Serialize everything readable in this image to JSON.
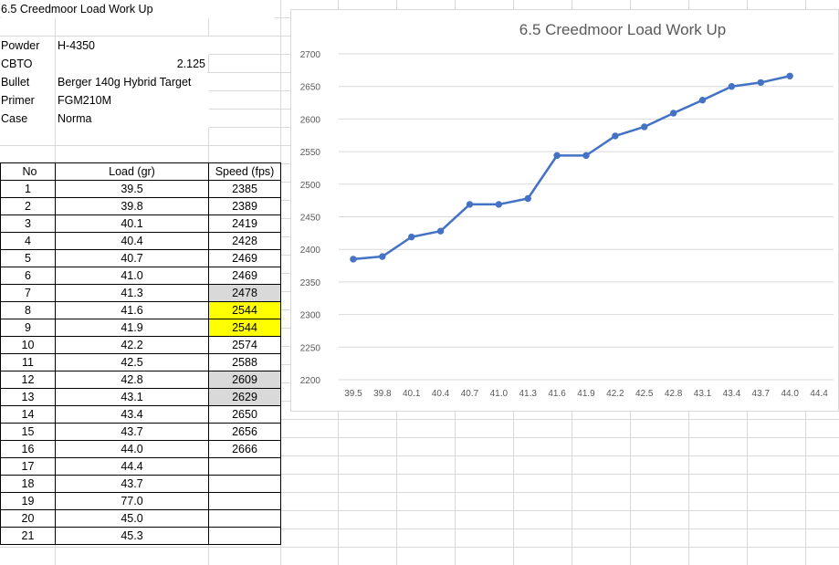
{
  "sheet": {
    "title": "6.5 Creedmoor Load Work Up",
    "specs": [
      {
        "label": "Powder",
        "value": "H-4350",
        "numeric": false
      },
      {
        "label": "CBTO",
        "value": "2.125",
        "numeric": true
      },
      {
        "label": "Bullet",
        "value": "Berger 140g Hybrid Target",
        "numeric": false
      },
      {
        "label": "Primer",
        "value": "FGM210M",
        "numeric": false
      },
      {
        "label": "Case",
        "value": "Norma",
        "numeric": false
      }
    ],
    "table": {
      "headers": [
        "No",
        "Load (gr)",
        "Speed (fps)"
      ],
      "rows": [
        {
          "no": "1",
          "load": "39.5",
          "speed": "2385",
          "fill": ""
        },
        {
          "no": "2",
          "load": "39.8",
          "speed": "2389",
          "fill": ""
        },
        {
          "no": "3",
          "load": "40.1",
          "speed": "2419",
          "fill": ""
        },
        {
          "no": "4",
          "load": "40.4",
          "speed": "2428",
          "fill": ""
        },
        {
          "no": "5",
          "load": "40.7",
          "speed": "2469",
          "fill": ""
        },
        {
          "no": "6",
          "load": "41.0",
          "speed": "2469",
          "fill": ""
        },
        {
          "no": "7",
          "load": "41.3",
          "speed": "2478",
          "fill": "#d9d9d9"
        },
        {
          "no": "8",
          "load": "41.6",
          "speed": "2544",
          "fill": "#ffff00"
        },
        {
          "no": "9",
          "load": "41.9",
          "speed": "2544",
          "fill": "#ffff00"
        },
        {
          "no": "10",
          "load": "42.2",
          "speed": "2574",
          "fill": ""
        },
        {
          "no": "11",
          "load": "42.5",
          "speed": "2588",
          "fill": ""
        },
        {
          "no": "12",
          "load": "42.8",
          "speed": "2609",
          "fill": "#d9d9d9"
        },
        {
          "no": "13",
          "load": "43.1",
          "speed": "2629",
          "fill": "#d9d9d9"
        },
        {
          "no": "14",
          "load": "43.4",
          "speed": "2650",
          "fill": ""
        },
        {
          "no": "15",
          "load": "43.7",
          "speed": "2656",
          "fill": ""
        },
        {
          "no": "16",
          "load": "44.0",
          "speed": "2666",
          "fill": ""
        },
        {
          "no": "17",
          "load": "44.4",
          "speed": "",
          "fill": ""
        },
        {
          "no": "18",
          "load": "43.7",
          "speed": "",
          "fill": ""
        },
        {
          "no": "19",
          "load": "77.0",
          "speed": "",
          "fill": ""
        },
        {
          "no": "20",
          "load": "45.0",
          "speed": "",
          "fill": ""
        },
        {
          "no": "21",
          "load": "45.3",
          "speed": "",
          "fill": ""
        }
      ]
    }
  },
  "chart_data": {
    "type": "line",
    "title": "6.5 Creedmoor Load Work Up",
    "xlabel": "",
    "ylabel": "",
    "categories": [
      "39.5",
      "39.8",
      "40.1",
      "40.4",
      "40.7",
      "41.0",
      "41.3",
      "41.6",
      "41.9",
      "42.2",
      "42.5",
      "42.8",
      "43.1",
      "43.4",
      "43.7",
      "44.0",
      "44.4"
    ],
    "series": [
      {
        "values": [
          2385,
          2389,
          2419,
          2428,
          2469,
          2469,
          2478,
          2544,
          2544,
          2574,
          2588,
          2609,
          2629,
          2650,
          2656,
          2666,
          null
        ]
      }
    ],
    "ylim": [
      2200,
      2700
    ],
    "yticks": [
      2200,
      2250,
      2300,
      2350,
      2400,
      2450,
      2500,
      2550,
      2600,
      2650,
      2700
    ],
    "grid": true,
    "legend": "none",
    "line_color": "#4472c4"
  }
}
